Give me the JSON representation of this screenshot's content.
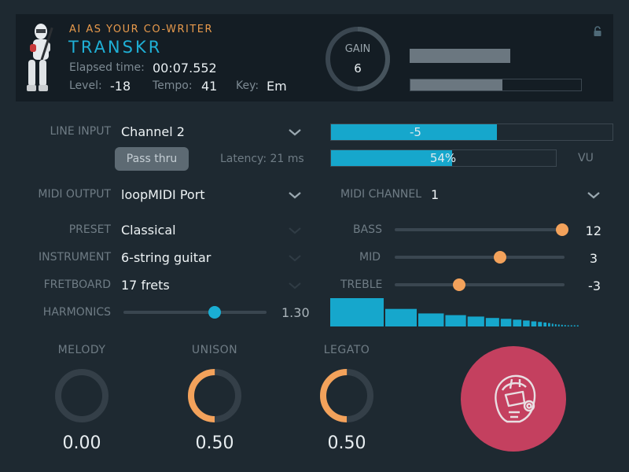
{
  "header": {
    "tagline": "AI AS YOUR CO-WRITER",
    "brand": "TRANSKR",
    "elapsed_label": "Elapsed time:",
    "elapsed_value": "00:07.552",
    "level_label": "Level:",
    "level_value": "-18",
    "tempo_label": "Tempo:",
    "tempo_value": "41",
    "key_label": "Key:",
    "key_value": "Em",
    "lock_icon": "lock-icon",
    "gain_label": "GAIN",
    "gain_value": "6",
    "gain_fraction": 0.5,
    "bar1_level": 1.0,
    "bar2_level": 0.54
  },
  "line_input": {
    "label": "LINE INPUT",
    "value": "Channel 2",
    "passthru_label": "Pass thru",
    "latency": "Latency: 21 ms",
    "meter1_text": "-5",
    "meter1_level": 0.59,
    "meter2_text": "54%",
    "meter2_level": 0.54,
    "vu_label": "VU"
  },
  "midi": {
    "output_label": "MIDI OUTPUT",
    "output_value": "loopMIDI Port",
    "channel_label": "MIDI CHANNEL",
    "channel_value": "1"
  },
  "preset": {
    "label": "PRESET",
    "value": "Classical"
  },
  "instrument": {
    "label": "INSTRUMENT",
    "value": "6-string guitar"
  },
  "fretboard": {
    "label": "FRETBOARD",
    "value": "17 frets"
  },
  "harmonics": {
    "label": "HARMONICS",
    "value": "1.30",
    "position": 0.64
  },
  "eq": {
    "bass": {
      "label": "BASS",
      "value": "12",
      "position": 1.0
    },
    "mid": {
      "label": "MID",
      "value": "3",
      "position": 0.62
    },
    "treble": {
      "label": "TREBLE",
      "value": "-3",
      "position": 0.38
    },
    "spectrum": [
      1.0,
      0.62,
      0.46,
      0.4,
      0.35,
      0.3,
      0.27,
      0.24,
      0.21,
      0.18,
      0.16,
      0.14,
      0.12,
      0.1,
      0.08,
      0.07,
      0.06,
      0.05,
      0.04,
      0.03,
      0.025,
      0.02
    ]
  },
  "knobs": [
    {
      "label": "MELODY",
      "value": "0.00",
      "fraction": 0.0
    },
    {
      "label": "UNISON",
      "value": "0.50",
      "fraction": 0.5
    },
    {
      "label": "LEGATO",
      "value": "0.50",
      "fraction": 0.5
    }
  ],
  "record_button_icon": "robot-head-icon",
  "colors": {
    "accent": "#16a7cc",
    "orange": "#f3a25b",
    "record": "#c4405f"
  }
}
